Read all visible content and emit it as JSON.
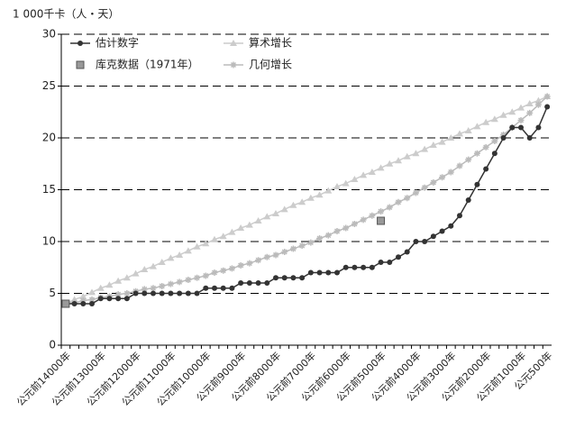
{
  "chart_data": {
    "type": "line",
    "y_label": "1 000千卡（人・天）",
    "categories": [
      "公元前14000年",
      null,
      null,
      null,
      "公元前13000年",
      null,
      null,
      null,
      "公元前12000年",
      null,
      null,
      null,
      "公元前11000年",
      null,
      null,
      null,
      "公元前10000年",
      null,
      null,
      null,
      "公元前9000年",
      null,
      null,
      null,
      "公元前8000年",
      null,
      null,
      null,
      "公元前7000年",
      null,
      null,
      null,
      "公元前6000年",
      null,
      null,
      null,
      "公元前5000年",
      null,
      null,
      null,
      "公元前4000年",
      null,
      null,
      null,
      "公元前3000年",
      null,
      null,
      null,
      "公元前2000年",
      null,
      null,
      null,
      "公元前1000年",
      null,
      null,
      "公元500年"
    ],
    "ylim": [
      0,
      30
    ],
    "yticks": [
      0,
      5,
      10,
      15,
      20,
      25,
      30
    ],
    "grid": true,
    "grid_style": "dashed",
    "series": [
      {
        "name": "估计数字",
        "color": "#333333",
        "marker": "circle",
        "show_line": true,
        "values": [
          4,
          4,
          4,
          4,
          4.5,
          4.5,
          4.5,
          4.5,
          5,
          5,
          5,
          5,
          5,
          5,
          5,
          5,
          5.5,
          5.5,
          5.5,
          5.5,
          6,
          6,
          6,
          6,
          6.5,
          6.5,
          6.5,
          6.5,
          7,
          7,
          7,
          7,
          7.5,
          7.5,
          7.5,
          7.5,
          8,
          8,
          8.5,
          9,
          10,
          10,
          10.5,
          11,
          11.5,
          12.5,
          14,
          15.5,
          17,
          18.5,
          20,
          21,
          21,
          20,
          21,
          23
        ]
      },
      {
        "name": "库克数据（1971年）",
        "color": "#999999",
        "marker": "square",
        "show_line": false,
        "values": [
          4,
          null,
          null,
          null,
          null,
          null,
          null,
          null,
          null,
          null,
          null,
          null,
          null,
          null,
          null,
          null,
          null,
          null,
          null,
          null,
          null,
          null,
          null,
          null,
          null,
          null,
          null,
          null,
          null,
          null,
          null,
          null,
          null,
          null,
          null,
          null,
          12,
          null,
          null,
          null,
          null,
          null,
          null,
          null,
          null,
          null,
          null,
          null,
          null,
          null,
          null,
          null,
          null,
          null,
          null,
          null
        ]
      },
      {
        "name": "算术增长",
        "color": "#cccccc",
        "marker": "triangle",
        "show_line": true,
        "values": [
          4.0,
          4.4,
          4.7,
          5.1,
          5.5,
          5.8,
          6.2,
          6.5,
          6.9,
          7.3,
          7.6,
          8.0,
          8.4,
          8.7,
          9.1,
          9.5,
          9.8,
          10.2,
          10.5,
          10.9,
          11.3,
          11.6,
          12.0,
          12.4,
          12.7,
          13.1,
          13.5,
          13.8,
          14.2,
          14.5,
          14.9,
          15.3,
          15.6,
          16.0,
          16.4,
          16.7,
          17.1,
          17.5,
          17.8,
          18.2,
          18.5,
          18.9,
          19.3,
          19.6,
          20.0,
          20.4,
          20.7,
          21.1,
          21.5,
          21.8,
          22.2,
          22.5,
          22.9,
          23.3,
          23.6,
          24.0
        ]
      },
      {
        "name": "几何增长",
        "color": "#bbbbbb",
        "marker": "star",
        "show_line": true,
        "values": [
          4.0,
          4.1,
          4.3,
          4.4,
          4.6,
          4.7,
          4.9,
          5.0,
          5.2,
          5.4,
          5.5,
          5.7,
          5.9,
          6.1,
          6.3,
          6.5,
          6.7,
          7.0,
          7.2,
          7.4,
          7.7,
          7.9,
          8.2,
          8.5,
          8.7,
          9.0,
          9.3,
          9.6,
          9.9,
          10.3,
          10.6,
          11.0,
          11.3,
          11.7,
          12.1,
          12.5,
          12.9,
          13.3,
          13.8,
          14.2,
          14.7,
          15.2,
          15.7,
          16.2,
          16.7,
          17.3,
          17.9,
          18.5,
          19.1,
          19.7,
          20.3,
          21.0,
          21.7,
          22.4,
          23.2,
          24.0
        ]
      }
    ]
  }
}
